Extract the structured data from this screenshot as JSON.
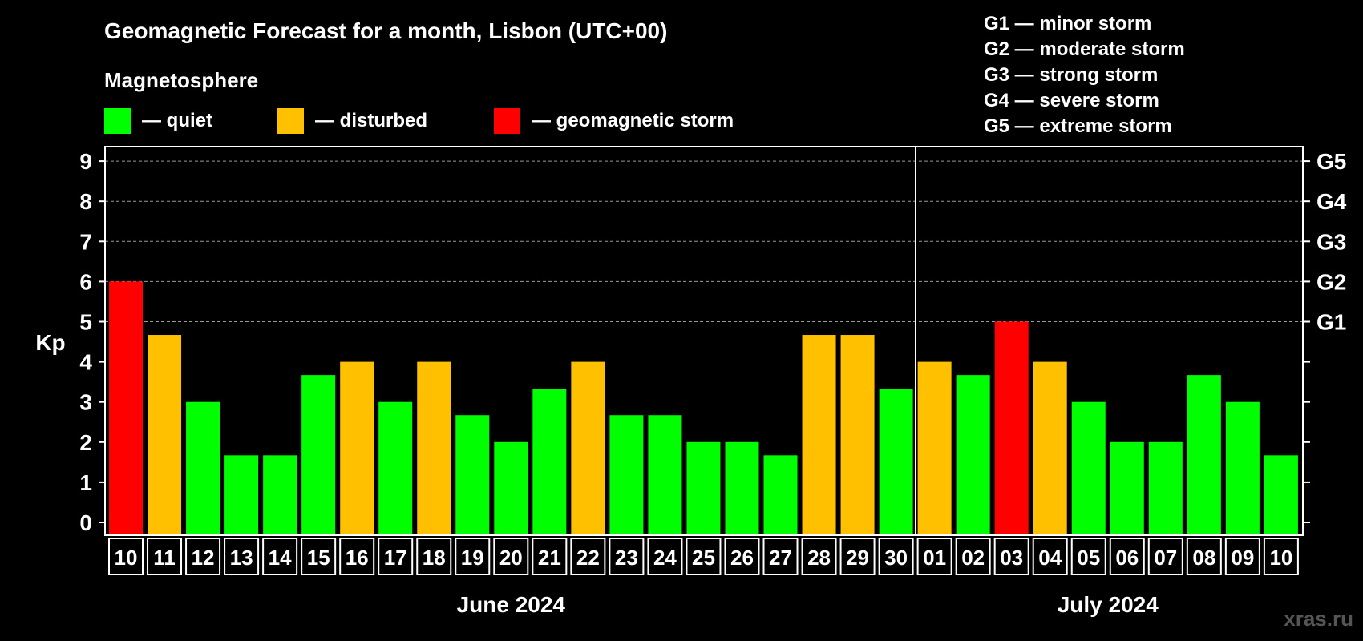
{
  "chart_data": {
    "type": "bar",
    "title": "Geomagnetic Forecast for a month, Lisbon (UTC+00)",
    "ylabel": "Kp",
    "ylim": [
      0,
      9
    ],
    "yticks": [
      0,
      1,
      2,
      3,
      4,
      5,
      6,
      7,
      8,
      9
    ],
    "right_axis_labels": [
      {
        "kp": 5,
        "label": "G1"
      },
      {
        "kp": 6,
        "label": "G2"
      },
      {
        "kp": 7,
        "label": "G3"
      },
      {
        "kp": 8,
        "label": "G4"
      },
      {
        "kp": 9,
        "label": "G5"
      }
    ],
    "categories": [
      "10",
      "11",
      "12",
      "13",
      "14",
      "15",
      "16",
      "17",
      "18",
      "19",
      "20",
      "21",
      "22",
      "23",
      "24",
      "25",
      "26",
      "27",
      "28",
      "29",
      "30",
      "01",
      "02",
      "03",
      "04",
      "05",
      "06",
      "07",
      "08",
      "09",
      "10"
    ],
    "values": [
      6,
      4.67,
      3,
      1.67,
      1.67,
      3.67,
      4,
      3,
      4,
      2.67,
      2,
      3.33,
      4,
      2.67,
      2.67,
      2,
      2,
      1.67,
      4.67,
      4.67,
      3.33,
      4,
      3.67,
      5,
      4,
      3,
      2,
      2,
      3.67,
      3,
      1.67
    ],
    "status": [
      "storm",
      "disturbed",
      "quiet",
      "quiet",
      "quiet",
      "quiet",
      "disturbed",
      "quiet",
      "disturbed",
      "quiet",
      "quiet",
      "quiet",
      "disturbed",
      "quiet",
      "quiet",
      "quiet",
      "quiet",
      "quiet",
      "disturbed",
      "disturbed",
      "quiet",
      "disturbed",
      "quiet",
      "storm",
      "disturbed",
      "quiet",
      "quiet",
      "quiet",
      "quiet",
      "quiet",
      "quiet"
    ],
    "months": [
      {
        "label": "June 2024",
        "start_index": 0,
        "end_index": 20
      },
      {
        "label": "July 2024",
        "start_index": 21,
        "end_index": 30
      }
    ],
    "grid": true
  },
  "legend": {
    "heading": "Magnetosphere",
    "items": [
      {
        "key": "quiet",
        "label": "— quiet",
        "color": "#00ff00"
      },
      {
        "key": "disturbed",
        "label": "— disturbed",
        "color": "#ffc000"
      },
      {
        "key": "storm",
        "label": "— geomagnetic storm",
        "color": "#ff0000"
      }
    ]
  },
  "storm_levels": [
    "G1 — minor storm",
    "G2 — moderate storm",
    "G3 — strong storm",
    "G4 — severe storm",
    "G5 — extreme storm"
  ],
  "watermark": "xras.ru"
}
